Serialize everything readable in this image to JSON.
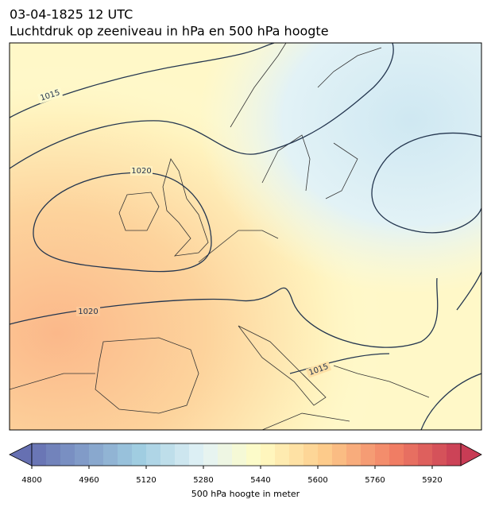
{
  "header": {
    "line1": "03-04-1825 12 UTC",
    "line2": "Luchtdruk op zeeniveau in hPa en 500 hPa hoogte"
  },
  "map": {
    "contour_labels": [
      "1015",
      "1020",
      "1020",
      "1015"
    ]
  },
  "colorbar": {
    "range": [
      4800,
      6000
    ],
    "ticks": [
      4800,
      4960,
      5120,
      5280,
      5440,
      5600,
      5760,
      5920
    ],
    "label": "500 hPa hoogte in meter"
  }
}
